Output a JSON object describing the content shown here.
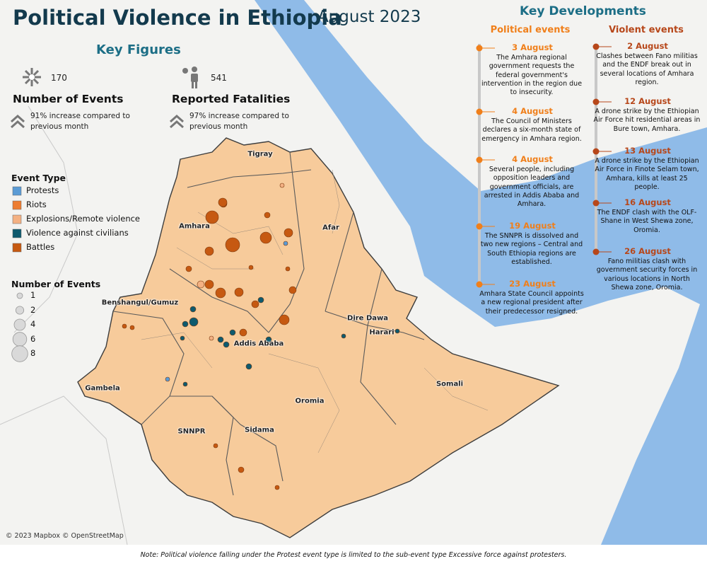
{
  "header": {
    "title": "Political Violence in Ethiopia",
    "subtitle": "August 2023"
  },
  "key_figures": {
    "title": "Key Figures",
    "items": [
      {
        "value": 170,
        "label": "Number of Events",
        "description": "91% increase compared to previous month"
      },
      {
        "value": 541,
        "label": "Reported Fatalities",
        "description": "97% increase compared to previous month"
      }
    ]
  },
  "legend": {
    "title": "Event Type",
    "items": [
      {
        "label": "Protests",
        "color": "#5b9bd5"
      },
      {
        "label": "Riots",
        "color": "#ed7d31"
      },
      {
        "label": "Explosions/Remote violence",
        "color": "#f4b183"
      },
      {
        "label": "Violence against civilians",
        "color": "#0e5a6e"
      },
      {
        "label": "Battles",
        "color": "#c65911"
      }
    ]
  },
  "size_legend": {
    "title": "Number of Events",
    "values": [
      1,
      2,
      4,
      6,
      8
    ]
  },
  "regions": [
    "Tigray",
    "Amhara",
    "Afar",
    "Benshangul/Gumuz",
    "Dire Dawa",
    "Harari",
    "Addis Ababa",
    "Gambela",
    "Somali",
    "Oromia",
    "SNNPR",
    "Sidama"
  ],
  "key_developments": {
    "title": "Key Developments",
    "columns": [
      {
        "title": "Political events",
        "color": "#f07f1a",
        "events": [
          {
            "date": "3 August",
            "text": "The Amhara regional government requests the federal government's intervention in the region due to insecurity."
          },
          {
            "date": "4 August",
            "text": "The Council of Ministers declares a six-month state of emergency in Amhara region."
          },
          {
            "date": "4 August",
            "text": "Several people, including opposition leaders and government officials, are arrested in Addis Ababa and Amhara."
          },
          {
            "date": "19 August",
            "text": "The SNNPR is dissolved and two new regions – Central and South Ethiopia regions are established."
          },
          {
            "date": "23 August",
            "text": "Amhara State Council appoints a new regional president after their predecessor resigned."
          }
        ]
      },
      {
        "title": "Violent events",
        "color": "#b7471a",
        "events": [
          {
            "date": "2 August",
            "text": "Clashes between Fano militias and the ENDF break out in several locations of Amhara region."
          },
          {
            "date": "12 August",
            "text": "A drone strike by the Ethiopian Air Force hit residential areas in Bure town, Amhara."
          },
          {
            "date": "13 August",
            "text": "A drone strike by the Ethiopian Air Force in Finote Selam town, Amhara, kills at least 25 people."
          },
          {
            "date": "16 August",
            "text": "The ENDF clash with the OLF-Shane in West Shewa zone, Oromia."
          },
          {
            "date": "26 August",
            "text": "Fano militias clash with government security forces in various locations in North Shewa zone, Oromia."
          }
        ]
      }
    ]
  },
  "attribution": "© 2023 Mapbox © OpenStreetMap",
  "note": "Note: Political violence falling under the Protest event type is limited to the sub-event type Excessive force against protesters."
}
